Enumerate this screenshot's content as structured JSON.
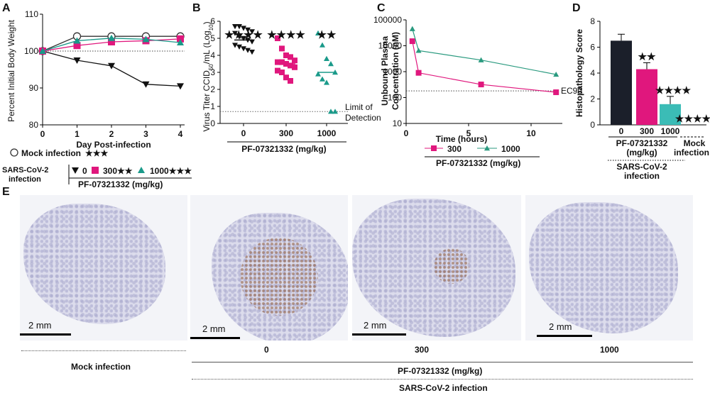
{
  "panels": {
    "a": "A",
    "b": "B",
    "c": "C",
    "d": "D",
    "e": "E"
  },
  "chart_data": [
    {
      "id": "A",
      "type": "line",
      "xlabel": "Day Post-infection",
      "ylabel": "Percent Initial Body Weight",
      "x": [
        0,
        1,
        2,
        3,
        4
      ],
      "ylim": [
        80,
        110
      ],
      "yticks": [
        "80",
        "90",
        "100",
        "110"
      ],
      "xticks": [
        "0",
        "1",
        "2",
        "3",
        "4"
      ],
      "reference_line": 100,
      "series": [
        {
          "name": "Mock infection",
          "values": [
            100,
            104,
            104,
            104,
            104
          ],
          "color": "#333333",
          "marker": "circle-open",
          "stars": "★★★"
        },
        {
          "name": "0",
          "values": [
            100,
            97.5,
            96,
            91,
            90.5
          ],
          "color": "#111111",
          "marker": "triangle-down"
        },
        {
          "name": "300",
          "values": [
            100,
            101.5,
            102.5,
            102.8,
            103.3
          ],
          "color": "#e0177d",
          "marker": "square",
          "stars": "★★"
        },
        {
          "name": "1000",
          "values": [
            100,
            102.8,
            103.5,
            103.2,
            102.3
          ],
          "color": "#1a9a8a",
          "marker": "triangle-up",
          "stars": "★★★"
        }
      ],
      "legend": {
        "mock": "Mock infection",
        "mock_stars": "★★★",
        "sars": "SARS-CoV-2",
        "sars2": "infection",
        "g0": "0",
        "g300": "300★★",
        "g1000": "1000★★★",
        "drug": "PF-07321332 (mg/kg)"
      }
    },
    {
      "id": "B",
      "type": "scatter",
      "ylabel": "Virus Titer CCID50/mL (Log10)",
      "ylabel_parts": {
        "a": "Virus Titer CCID",
        "b": "50",
        "c": "/mL (Log",
        "d": "10",
        "e": ")"
      },
      "xlabel": "PF-07321332 (mg/kg)",
      "categories": [
        "0",
        "300",
        "1000"
      ],
      "ylim": [
        0,
        6
      ],
      "yticks": [
        "0",
        "1",
        "2",
        "3",
        "4",
        "5",
        "6"
      ],
      "limit_of_detection": 0.7,
      "lod_label_1": "Limit of",
      "lod_label_2": "Detection",
      "series": [
        {
          "name": "0",
          "color": "#111111",
          "marker": "triangle-down",
          "mean": 4.9,
          "points": [
            5.7,
            5.7,
            5.6,
            5.5,
            5.4,
            5.3,
            5.1,
            5.0,
            4.9,
            4.8,
            4.6,
            4.5,
            4.4,
            4.3,
            4.2
          ],
          "stars": "★★★★"
        },
        {
          "name": "300",
          "color": "#e0177d",
          "marker": "square",
          "mean": 3.5,
          "points": [
            5.0,
            4.4,
            4.0,
            3.9,
            3.7,
            3.6,
            3.6,
            3.5,
            3.4,
            3.3,
            3.1,
            3.0,
            2.7,
            2.5
          ],
          "stars": "★★★★"
        },
        {
          "name": "1000",
          "color": "#1a9a8a",
          "marker": "triangle-up",
          "mean": 3.0,
          "points": [
            5.3,
            4.6,
            3.8,
            3.5,
            3.0,
            2.9,
            2.6,
            2.4,
            0.7,
            0.7
          ],
          "stars": "★★"
        }
      ],
      "stars": [
        "★★★★",
        "★★"
      ]
    },
    {
      "id": "C",
      "type": "line",
      "xlabel": "Time (hours)",
      "ylabel": "Unbound Plasma Concentration (nM)",
      "ylabel_1": "Unbound Plasma",
      "ylabel_2": "Concentration (nM)",
      "yscale": "log",
      "ylim": [
        10,
        100000
      ],
      "yticks": [
        "10",
        "100",
        "1000",
        "10000",
        "100000"
      ],
      "xticks": [
        "0",
        "5",
        "10"
      ],
      "xlim": [
        0,
        12.5
      ],
      "ec90": 180,
      "ec90_label": "EC90",
      "series": [
        {
          "name": "300",
          "color": "#e0177d",
          "marker": "square",
          "x": [
            0.5,
            1,
            6,
            12
          ],
          "values": [
            15000,
            900,
            320,
            160
          ]
        },
        {
          "name": "1000",
          "color": "#2a9a7f",
          "marker": "triangle-up",
          "x": [
            0.5,
            1,
            6,
            12
          ],
          "values": [
            45000,
            6500,
            2800,
            780
          ]
        }
      ],
      "legend": {
        "s300": "300",
        "s1000": "1000",
        "drug": "PF-07321332 (mg/kg)"
      }
    },
    {
      "id": "D",
      "type": "bar",
      "ylabel": "Histopathology Score",
      "categories": [
        "0",
        "300",
        "1000",
        "Mock infection"
      ],
      "values": [
        6.5,
        4.3,
        1.6,
        0
      ],
      "errors": [
        0.5,
        0.5,
        0.6,
        0
      ],
      "colors": [
        "#1b1f2a",
        "#e0177d",
        "#3bbcb6",
        "#ffffff"
      ],
      "stars": [
        "",
        "★★",
        "★★★★",
        "★★★★"
      ],
      "ylim": [
        0,
        8
      ],
      "yticks": [
        "0",
        "2",
        "4",
        "6",
        "8"
      ],
      "group1": "PF-07321332",
      "group2": "(mg/kg)",
      "infection1": "SARS-CoV-2",
      "infection2": "infection",
      "mock1": "Mock",
      "mock2": "infection"
    }
  ],
  "panel_e": {
    "scale": "2 mm",
    "labels": [
      "Mock infection",
      "0",
      "300",
      "1000"
    ],
    "drug": "PF-07321332 (mg/kg)",
    "infection": "SARS-CoV-2 infection"
  }
}
